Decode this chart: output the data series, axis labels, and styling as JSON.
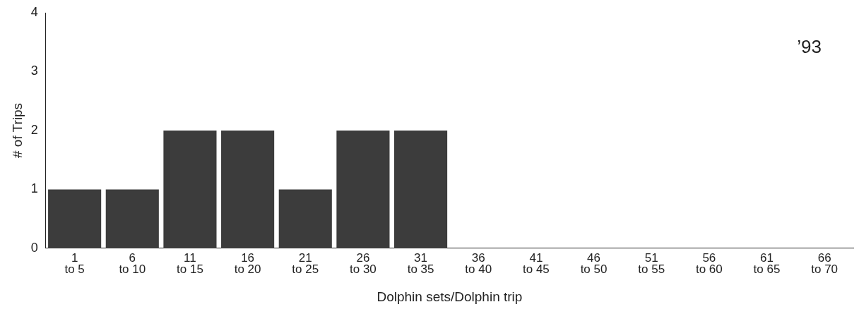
{
  "chart_data": {
    "type": "bar",
    "xlabel": "Dolphin sets/Dolphin trip",
    "ylabel": "# of Trips",
    "categories": [
      "1\nto 5",
      "6\nto 10",
      "11\nto 15",
      "16\nto 20",
      "21\nto 25",
      "26\nto 30",
      "31\nto 35",
      "36\nto 40",
      "41\nto 45",
      "46\nto 50",
      "51\nto 55",
      "56\nto 60",
      "61\nto 65",
      "66\nto 70"
    ],
    "values": [
      1,
      1,
      2,
      2,
      1,
      2,
      2,
      0,
      0,
      0,
      0,
      0,
      0,
      0
    ],
    "color": "#3c3c3c",
    "ylim": [
      0,
      4
    ],
    "yticks": [
      0,
      1,
      2,
      3,
      4
    ],
    "grid": false,
    "legend": false,
    "annotations": [
      "’93"
    ]
  }
}
